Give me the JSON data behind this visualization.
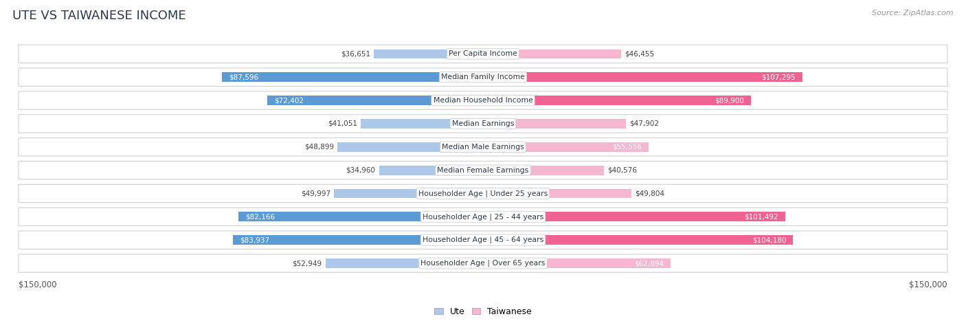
{
  "title": "UTE VS TAIWANESE INCOME",
  "source": "Source: ZipAtlas.com",
  "categories": [
    "Per Capita Income",
    "Median Family Income",
    "Median Household Income",
    "Median Earnings",
    "Median Male Earnings",
    "Median Female Earnings",
    "Householder Age | Under 25 years",
    "Householder Age | 25 - 44 years",
    "Householder Age | 45 - 64 years",
    "Householder Age | Over 65 years"
  ],
  "ute_values": [
    36651,
    87596,
    72402,
    41051,
    48899,
    34960,
    49997,
    82166,
    83937,
    52949
  ],
  "taiwanese_values": [
    46455,
    107295,
    89900,
    47902,
    55556,
    40576,
    49804,
    101492,
    104180,
    62894
  ],
  "ute_labels": [
    "$36,651",
    "$87,596",
    "$72,402",
    "$41,051",
    "$48,899",
    "$34,960",
    "$49,997",
    "$82,166",
    "$83,937",
    "$52,949"
  ],
  "taiwanese_labels": [
    "$46,455",
    "$107,295",
    "$89,900",
    "$47,902",
    "$55,556",
    "$40,576",
    "$49,804",
    "$101,492",
    "$104,180",
    "$62,894"
  ],
  "ute_color_light": "#adc8e8",
  "ute_color_dark": "#5b9bd5",
  "taiwanese_color_light": "#f5b8d0",
  "taiwanese_color_dark": "#f06292",
  "max_value": 150000,
  "background_color": "#ffffff",
  "row_bg_color": "#f0f0f0",
  "row_bg_light": "#fafafa",
  "title_color": "#2d3a4a",
  "source_color": "#999999",
  "value_color_inside": "#ffffff",
  "value_color_outside": "#555555",
  "axis_label_left": "$150,000",
  "axis_label_right": "$150,000",
  "legend_ute": "Ute",
  "legend_taiwanese": "Taiwanese",
  "inside_threshold": 55000
}
